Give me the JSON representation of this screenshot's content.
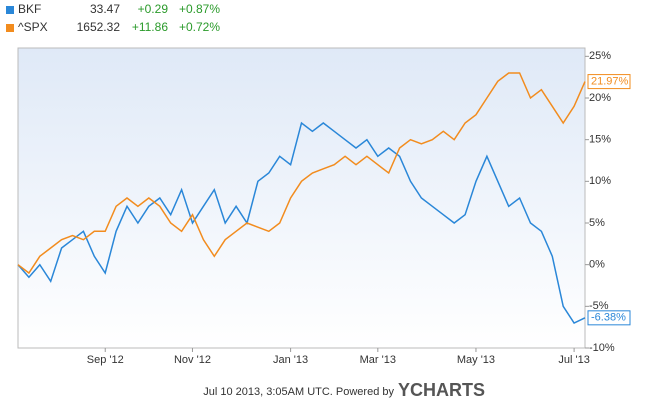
{
  "chart_data": {
    "type": "line",
    "categories": [
      null,
      null,
      null,
      null,
      null,
      null,
      null,
      null,
      "Sep '12",
      null,
      null,
      null,
      null,
      null,
      null,
      null,
      "Nov '12",
      null,
      null,
      null,
      null,
      null,
      null,
      null,
      null,
      "Jan '13",
      null,
      null,
      null,
      null,
      null,
      null,
      null,
      "Mar '13",
      null,
      null,
      null,
      null,
      null,
      null,
      null,
      null,
      "May '13",
      null,
      null,
      null,
      null,
      null,
      null,
      null,
      null,
      "Jul '13",
      null
    ],
    "series": [
      {
        "name": "BKF",
        "price": "33.47",
        "change": "+0.29",
        "change_pct": "+0.87%",
        "color": "#2a87d8",
        "values": [
          0,
          -1.5,
          0,
          -2,
          2,
          3,
          4,
          1,
          -1,
          4,
          7,
          5,
          7,
          8,
          6,
          9,
          5,
          7,
          9,
          5,
          7,
          5,
          10,
          11,
          13,
          12,
          17,
          16,
          17,
          16,
          15,
          14,
          15,
          13,
          14,
          13,
          10,
          8,
          7,
          6,
          5,
          6,
          10,
          13,
          10,
          7,
          8,
          5,
          4,
          1,
          -5,
          -7,
          -6.38
        ],
        "value_labels": [
          null,
          null,
          null,
          null,
          null,
          null,
          null,
          null,
          null,
          null,
          null,
          null,
          null,
          null,
          null,
          null,
          null,
          null,
          null,
          null,
          null,
          null,
          null,
          null,
          null,
          null,
          null,
          null,
          null,
          null,
          null,
          null,
          null,
          null,
          null,
          null,
          null,
          null,
          null,
          null,
          null,
          null,
          null,
          null,
          null,
          null,
          null,
          null,
          null,
          null,
          null,
          null,
          "-6.38%"
        ]
      },
      {
        "name": "^SPX",
        "price": "1652.32",
        "change": "+11.86",
        "change_pct": "+0.72%",
        "color": "#f28c1e",
        "values": [
          0,
          -1,
          1,
          2,
          3,
          3.5,
          3,
          4,
          4,
          7,
          8,
          7,
          8,
          7,
          5,
          4,
          6,
          3,
          1,
          3,
          4,
          5,
          4.5,
          4,
          5,
          8,
          10,
          11,
          11.5,
          12,
          13,
          12,
          13,
          12,
          11,
          14,
          15,
          14.5,
          15,
          16,
          15,
          17,
          18,
          20,
          22,
          23,
          23,
          20,
          21,
          19,
          17,
          19,
          21.97
        ],
        "value_labels": [
          null,
          null,
          null,
          null,
          null,
          null,
          null,
          null,
          null,
          null,
          null,
          null,
          null,
          null,
          null,
          null,
          null,
          null,
          null,
          null,
          null,
          null,
          null,
          null,
          null,
          null,
          null,
          null,
          null,
          null,
          null,
          null,
          null,
          null,
          null,
          null,
          null,
          null,
          null,
          null,
          null,
          null,
          null,
          null,
          null,
          null,
          null,
          null,
          null,
          null,
          null,
          null,
          "21.97%"
        ]
      }
    ],
    "ylim": [
      -10,
      26
    ],
    "yticks": [
      {
        "value": 25,
        "label": "25%"
      },
      {
        "value": 20,
        "label": "20%"
      },
      {
        "value": 15,
        "label": "15%"
      },
      {
        "value": 10,
        "label": "10%"
      },
      {
        "value": 5,
        "label": "5%"
      },
      {
        "value": 0,
        "label": "0%"
      },
      {
        "value": -5,
        "label": "-5%"
      },
      {
        "value": -10,
        "label": "-10%"
      }
    ],
    "grid": false,
    "footer": "Jul 10 2013, 3:05AM UTC. Powered by",
    "brand": "YCHARTS"
  }
}
